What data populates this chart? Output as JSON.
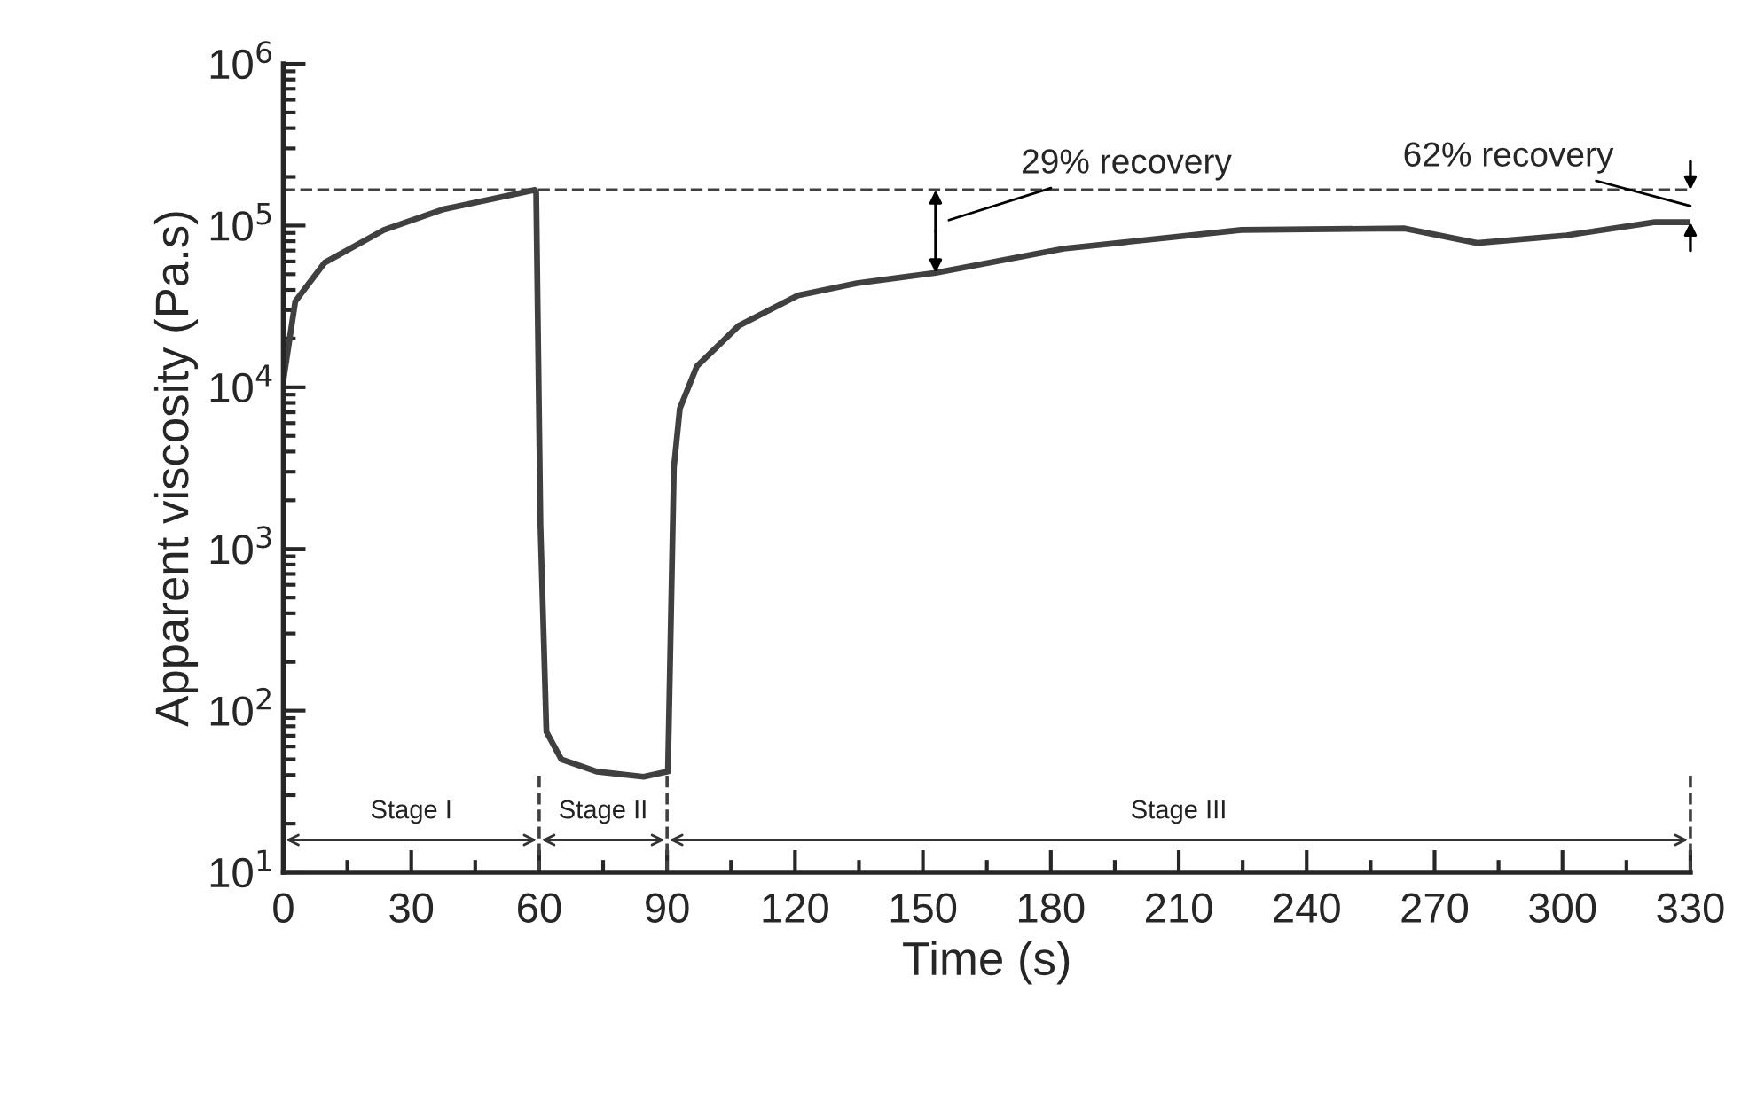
{
  "chart_data": {
    "type": "line",
    "xlabel": "Time (s)",
    "ylabel": "Apparent viscosity (Pa.s)",
    "log": "y",
    "x": [
      0,
      2.8,
      9.7,
      23.6,
      37.5,
      59,
      59.3,
      60.3,
      61.7,
      65.2,
      73.5,
      84.5,
      90.2,
      91.6,
      93,
      97,
      106.8,
      120.7,
      134.5,
      153,
      183,
      224.7,
      263,
      280,
      301,
      321.7,
      330
    ],
    "series": [
      {
        "color": "#404040",
        "values": [
          11000,
          34000,
          59000,
          94000,
          126000,
          166000,
          160000,
          1400,
          74,
          50,
          42,
          39,
          42,
          3200,
          7400,
          13500,
          24000,
          37000,
          44000,
          51000,
          72000,
          94000,
          96000,
          78000,
          87000,
          105000,
          105000
        ]
      }
    ],
    "xlim": [
      0,
      330
    ],
    "xticks": [
      0,
      30,
      60,
      90,
      120,
      150,
      180,
      210,
      240,
      270,
      300,
      330
    ],
    "ylim": [
      10,
      1000000
    ],
    "yticks": [
      {
        "value": 10,
        "label": "10$^{1}$"
      },
      {
        "value": 100,
        "label": "10$^{2}$"
      },
      {
        "value": 1000,
        "label": "10$^{3}$"
      },
      {
        "value": 10000,
        "label": "10$^{4}$"
      },
      {
        "value": 100000,
        "label": "10$^{5}$"
      },
      {
        "value": 1000000,
        "label": "10$^{6}$"
      }
    ],
    "ref_lines": [
      {
        "axis": "y",
        "value": 166000,
        "line_style": "dashed",
        "color": "#404040"
      },
      {
        "axis": "x",
        "value": 60,
        "line_style": "dashed",
        "color": "#404040"
      },
      {
        "axis": "x",
        "value": 90,
        "line_style": "dashed",
        "color": "#404040"
      },
      {
        "axis": "x",
        "value": 330,
        "line_style": "dashed",
        "color": "#404040"
      }
    ],
    "annotations": [
      "Stage I",
      "Stage II",
      "Stage III",
      "29% recovery",
      "62% recovery"
    ],
    "grid": false,
    "legend": false,
    "marker": "none",
    "line_style": "solid"
  }
}
